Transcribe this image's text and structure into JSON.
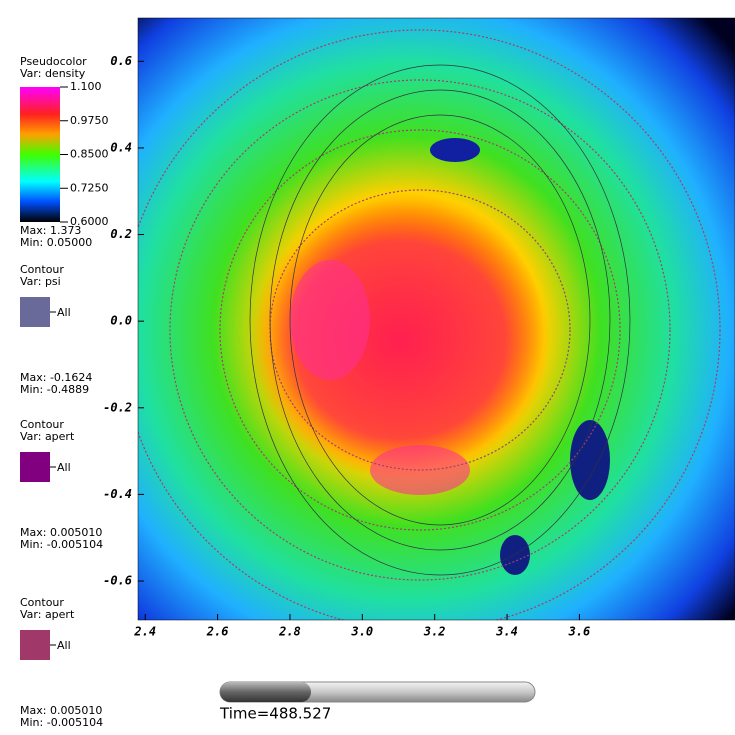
{
  "chart_data": {
    "type": "pseudocolor",
    "xlim": [
      2.38,
      4.03
    ],
    "ylim": [
      -0.69,
      0.7
    ],
    "xticks": [
      2.4,
      2.6,
      2.8,
      {
        "value": 3.0,
        "label": "3.0"
      },
      3.2,
      3.4,
      3.6
    ],
    "yticks": [
      0.6,
      0.4,
      0.2,
      {
        "value": 0.0,
        "label": "0.0"
      },
      -0.2,
      -0.4,
      -0.6
    ]
  },
  "legends": [
    {
      "title": "Pseudocolor",
      "var": "Var: density",
      "colorbar": {
        "range": [
          0.6,
          1.1
        ],
        "ticks": [
          {
            "value": 1.1,
            "label": "1.100"
          },
          {
            "value": 0.975,
            "label": "0.9750"
          },
          {
            "value": 0.85,
            "label": "0.8500"
          },
          {
            "value": 0.725,
            "label": "0.7250"
          },
          {
            "value": 0.6,
            "label": "0.6000"
          }
        ]
      },
      "max": "Max:  1.373",
      "min": "Min:  0.05000"
    },
    {
      "title": "Contour",
      "var": "Var: psi",
      "color": "#6a6a9a",
      "entry": "All",
      "max": "Max: -0.1624",
      "min": "Min: -0.4889"
    },
    {
      "title": "Contour",
      "var": "Var: apert",
      "color": "#800080",
      "entry": "All",
      "max": "Max: 0.005010",
      "min": "Min: -0.005104"
    },
    {
      "title": "Contour",
      "var": "Var: apert",
      "color": "#a0386a",
      "entry": "All",
      "max": "Max: 0.005010",
      "min": "Min: -0.005104"
    }
  ],
  "time": {
    "label": "Time=488.527"
  }
}
